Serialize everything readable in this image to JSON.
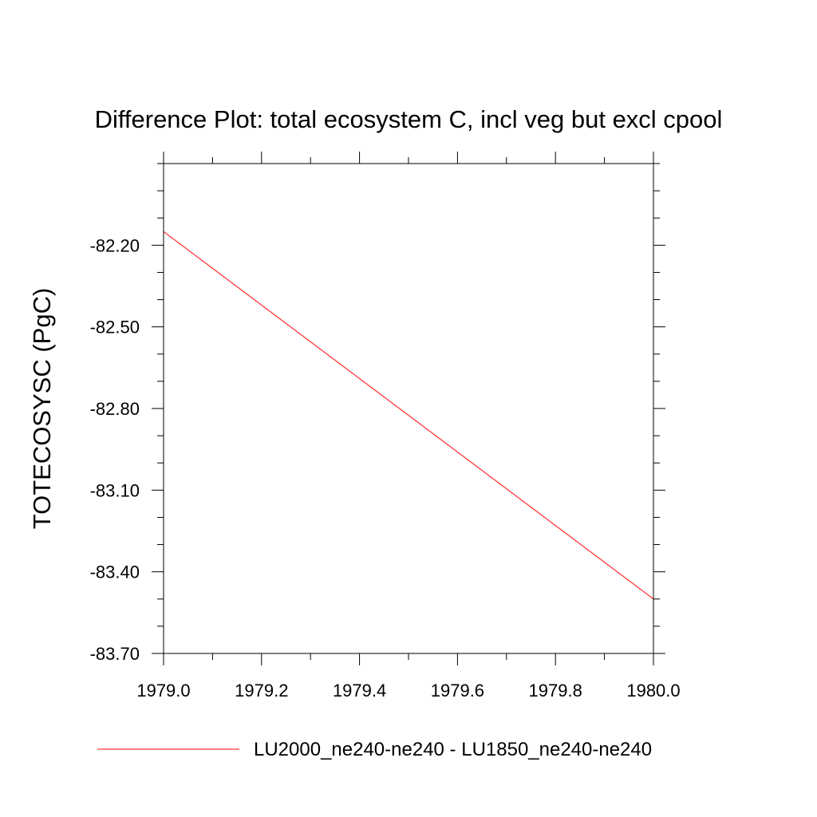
{
  "chart_data": {
    "type": "line",
    "title": "Difference Plot: total ecosystem C, incl veg but excl cpool",
    "xlabel": "",
    "ylabel": "TOTECOSYSC  (PgC)",
    "xlim": [
      1979.0,
      1980.0
    ],
    "ylim": [
      -83.7,
      -81.9
    ],
    "x_ticks": [
      1979.0,
      1979.2,
      1979.4,
      1979.6,
      1979.8,
      1980.0
    ],
    "x_tick_labels": [
      "1979.0",
      "1979.2",
      "1979.4",
      "1979.6",
      "1979.8",
      "1980.0"
    ],
    "x_minor_step": 0.1,
    "y_ticks": [
      -83.7,
      -83.4,
      -83.1,
      -82.8,
      -82.5,
      -82.2
    ],
    "y_tick_labels": [
      "-83.70",
      "-83.40",
      "-83.10",
      "-82.80",
      "-82.50",
      "-82.20"
    ],
    "y_minor_step": 0.1,
    "grid": false,
    "legend_position": "bottom",
    "series": [
      {
        "name": "LU2000_ne240-ne240 - LU1850_ne240-ne240",
        "color": "#ff0000",
        "x": [
          1979.0,
          1980.0
        ],
        "y": [
          -82.15,
          -83.5
        ]
      }
    ]
  }
}
